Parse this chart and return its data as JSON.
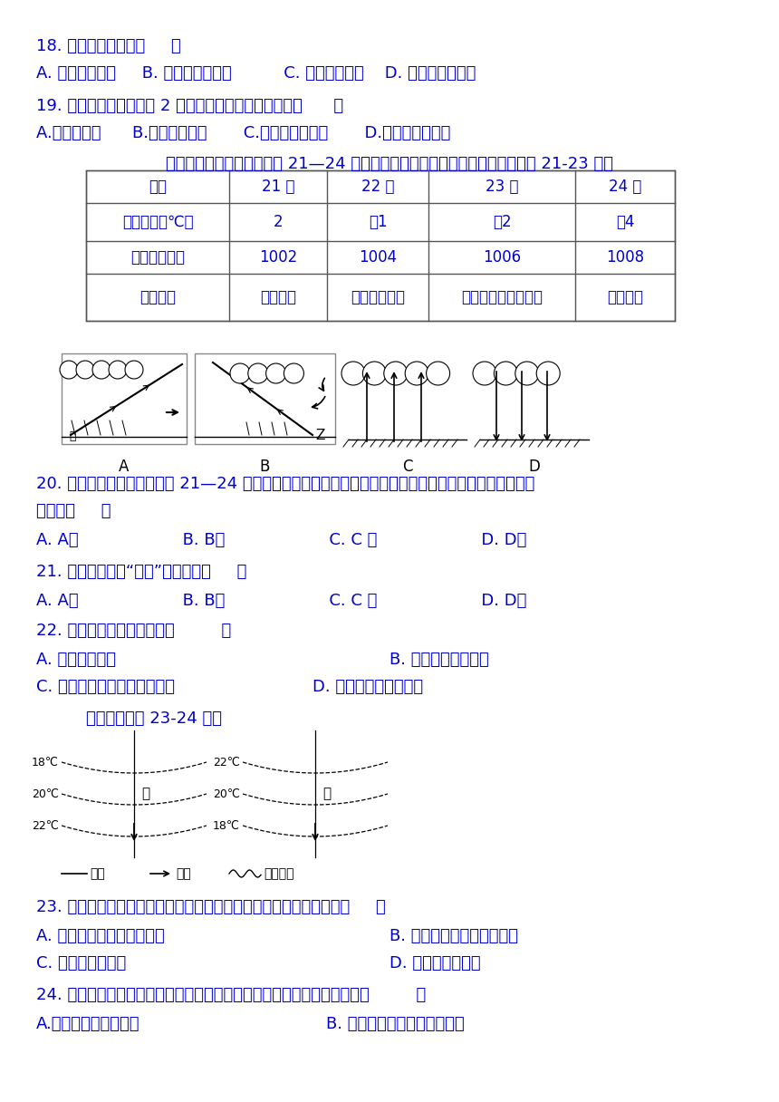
{
  "bg_color": "#ffffff",
  "text_color": "#0000cd",
  "q18": "18. 图中气压带代表（     ）",
  "q18_opts": "A. 赤道低气压带     B. 副极地低气压带          C. 极地高气压带    D. 副热带高气压带",
  "q19": "19. 在图中气压带和风带 2 的交替控制下形成的气候是（      ）",
  "q19_opts": "A.地中海气候      B.热带沙漠气候       C.亚热带季风气候       D.温带海洋性气候",
  "table_intro": "下表是我国某地气象站某月 21—24 日气象观测记录的部分资料，根据资料回答 21-23 题。",
  "table_headers": [
    "日期",
    "21 日",
    "22 日",
    "23 日",
    "24 日"
  ],
  "table_row1": [
    "平均气温（℃）",
    "2",
    "－1",
    "－2",
    "－4"
  ],
  "table_row2": [
    "气压（百帕）",
    "1002",
    "1004",
    "1006",
    "1008"
  ],
  "table_row3": [
    "天气状况",
    "晴转多云",
    "阴转小雨夹雪",
    "小雪渐止转阴到多云",
    "多云转晴"
  ],
  "q20": "20. 表格中所统计的数据表明 21—24 日间当地受到哪种天气系统的影响，该天气系统的示意图对应图中的",
  "q20b": "哪幅图（     ）",
  "q20_opts": "A. A图                    B. B图                    C. C 图                    D. D图",
  "q21": "21. 四图中，造成“伏旱”天气的是（     ）",
  "q21_opts": "A. A图                    B. B图                    C. C 图                    D. D图",
  "q22": "22. 这次降水的形成原因是（         ）",
  "q22_optsA": "A. 气流下沉造成",
  "q22_optsB": "B. 气流对流上升造成",
  "q22_optsC": "C. 暖气团主动沿锋面爬升造成",
  "q22_optsD": "D. 暖气团被迫抬升造成",
  "q23_intro": "读下图，完成 23-24 题。",
  "q23": "23. 根据图中等水温线数值分布及弯曲形态判断，下列叙述正确的是（     ）",
  "q23_optsA": "A. 甲图所示区域位于南半球",
  "q23_optsB": "B. 乙图所示区域位于南半球",
  "q23_optsC": "C. 甲图洋流为暖流",
  "q23_optsD": "D. 乙图洋流为寒流",
  "q24": "24. 图中所示区域均位于太平洋，则甲、乙两图的洋流名称判断正确的是（         ）",
  "q24_optsA": "A.甲图洋流为秘鲁寒流",
  "q24_optsB": "B. 乙图洋流为西澳大利亚寒流"
}
